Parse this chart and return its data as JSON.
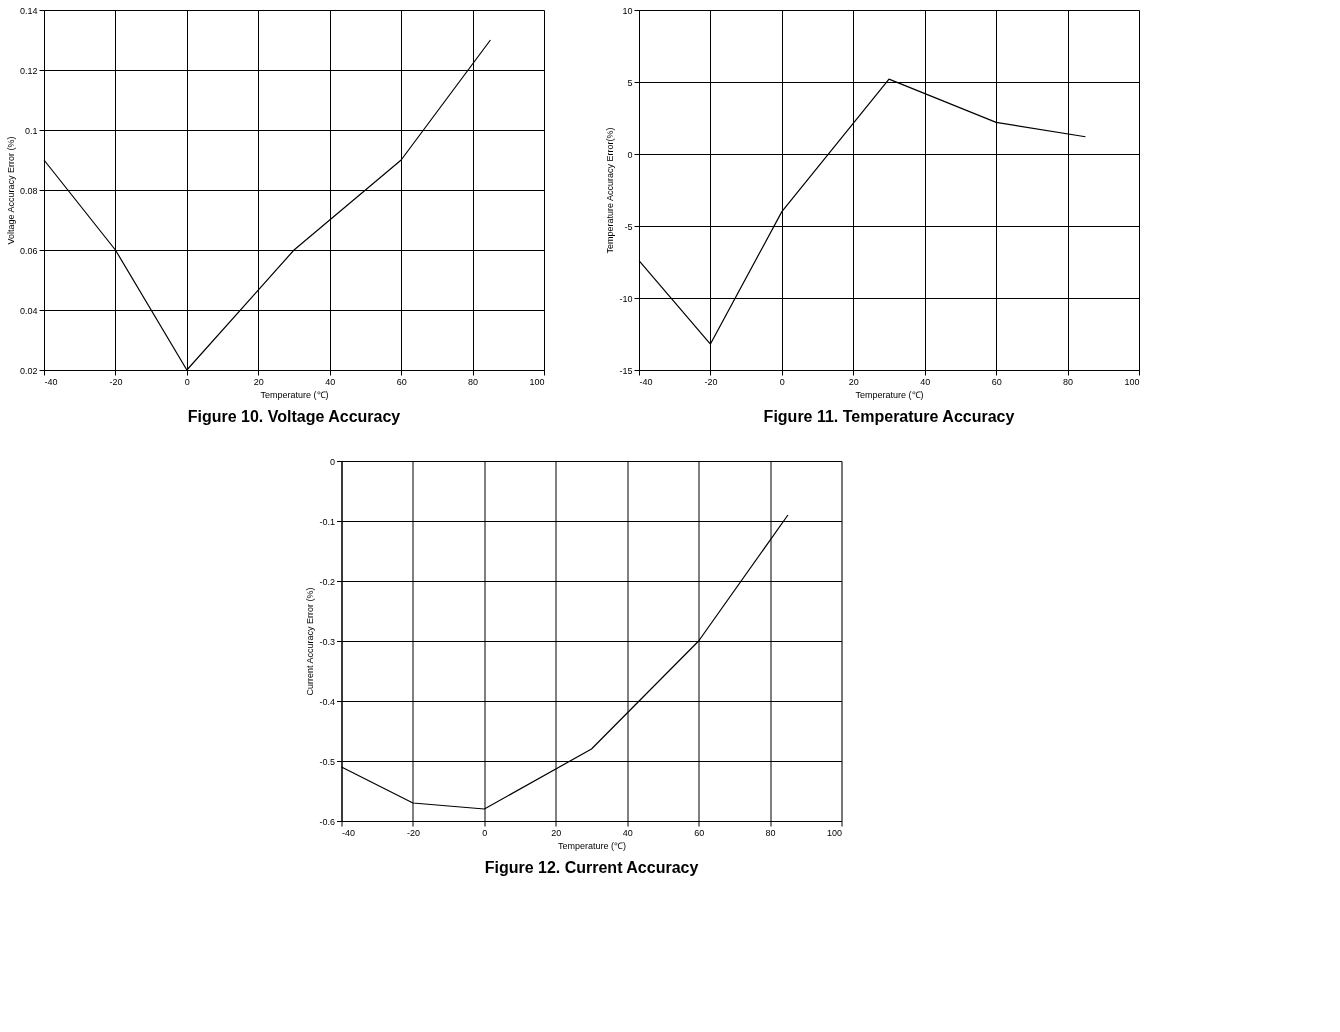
{
  "chart_data": [
    {
      "type": "line",
      "title": "Figure 10. Voltage Accuracy",
      "xlabel": "Temperature (℃)",
      "ylabel": "Voltage Accuracy Error (%)",
      "x": [
        -40,
        -20,
        0,
        30,
        60,
        85
      ],
      "values": [
        0.09,
        0.06,
        0.02,
        0.06,
        0.09,
        0.13
      ],
      "color": "#000000",
      "xlim": [
        -40,
        100
      ],
      "xticks": [
        -40,
        -20,
        0,
        20,
        40,
        60,
        80,
        100
      ],
      "ylim": [
        0.02,
        0.14
      ],
      "yticks": [
        0.02,
        0.04,
        0.06,
        0.08,
        0.1,
        0.12,
        0.14
      ],
      "grid": true,
      "marker": "none",
      "line_style": "solid"
    },
    {
      "type": "line",
      "title": "Figure 11. Temperature Accuracy",
      "xlabel": "Temperature (℃)",
      "ylabel": "Temperature Accuracy Error(%)",
      "x": [
        -40,
        -20,
        0,
        30,
        60,
        85
      ],
      "values": [
        -7.4,
        -13.2,
        -4,
        5.2,
        2.2,
        1.2
      ],
      "color": "#000000",
      "xlim": [
        -40,
        100
      ],
      "xticks": [
        -40,
        -20,
        0,
        20,
        40,
        60,
        80,
        100
      ],
      "ylim": [
        -15,
        10
      ],
      "yticks": [
        -15,
        -10,
        -5,
        0,
        5,
        10
      ],
      "grid": true,
      "marker": "none",
      "line_style": "solid"
    },
    {
      "type": "line",
      "title": "Figure 12. Current Accuracy",
      "xlabel": "Temperature (℃)",
      "ylabel": "Current Accuracy Error (%)",
      "x": [
        -40,
        -20,
        0,
        30,
        60,
        85
      ],
      "values": [
        -0.51,
        -0.57,
        -0.58,
        -0.48,
        -0.3,
        -0.09
      ],
      "color": "#000000",
      "xlim": [
        -40,
        100
      ],
      "xticks": [
        -40,
        -20,
        0,
        20,
        40,
        60,
        80,
        100
      ],
      "ylim": [
        -0.6,
        0
      ],
      "yticks": [
        -0.6,
        -0.5,
        -0.4,
        -0.3,
        -0.2,
        -0.1,
        0
      ],
      "grid": true,
      "marker": "none",
      "line_style": "solid"
    }
  ]
}
